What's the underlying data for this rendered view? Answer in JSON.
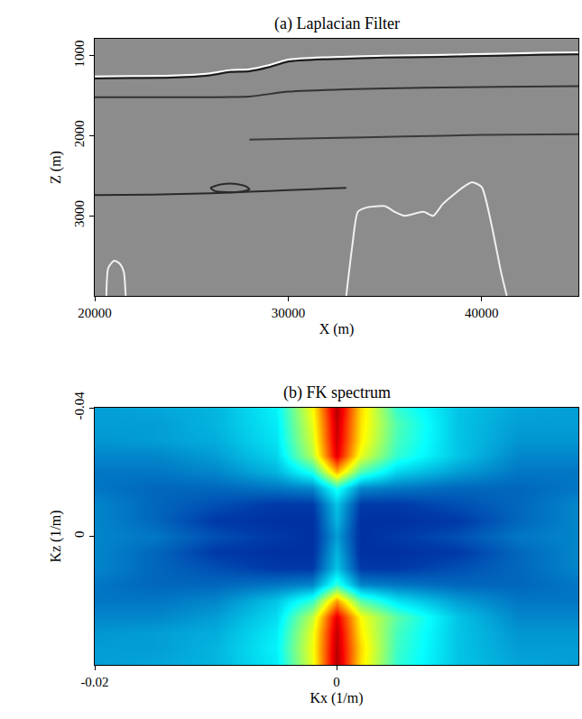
{
  "chart_data": [
    {
      "type": "line",
      "title": "(a) Laplacian Filter",
      "x_label": "X (m)",
      "y_label": "Z (m)",
      "xlim": [
        20000,
        45000
      ],
      "xticks": [
        20000,
        30000,
        40000
      ],
      "ylim": [
        4000,
        790
      ],
      "yticks": [
        1000,
        2000,
        3000
      ],
      "grid": false,
      "series": [
        {
          "color": "#ffffff",
          "x": [
            20000,
            22000,
            24000,
            26000,
            27000,
            28000,
            29000,
            30000,
            32000,
            35000,
            38000,
            41000,
            43000,
            45000
          ],
          "values": [
            1260,
            1255,
            1250,
            1220,
            1180,
            1170,
            1120,
            1050,
            1020,
            1000,
            990,
            975,
            965,
            960
          ]
        },
        {
          "color": "#1a1a1a",
          "x": [
            20000,
            22000,
            24000,
            26000,
            27000,
            28000,
            29000,
            30000,
            32000,
            35000,
            38000,
            41000,
            43000,
            45000
          ],
          "values": [
            1285,
            1280,
            1275,
            1245,
            1205,
            1195,
            1145,
            1075,
            1045,
            1025,
            1015,
            1000,
            990,
            985
          ]
        },
        {
          "color": "#333333",
          "x": [
            20000,
            25000,
            28000,
            30000,
            33000,
            37000,
            41000,
            45000
          ],
          "values": [
            1520,
            1520,
            1510,
            1450,
            1420,
            1400,
            1390,
            1380
          ]
        },
        {
          "color": "#3a3a3a",
          "x": [
            28000,
            32000,
            36000,
            40000,
            45000
          ],
          "values": [
            2050,
            2030,
            2010,
            1990,
            1980
          ]
        },
        {
          "color": "#2a2a2a",
          "x": [
            20000,
            23000,
            26000,
            28000,
            30000,
            32000,
            33000
          ],
          "values": [
            2740,
            2735,
            2720,
            2700,
            2680,
            2660,
            2650
          ]
        },
        {
          "color": "#2a2a2a",
          "x": [
            26000,
            26500,
            27200,
            27800,
            28000,
            27500,
            26800,
            26200,
            26000
          ],
          "values": [
            2650,
            2610,
            2600,
            2630,
            2670,
            2700,
            2705,
            2690,
            2650
          ]
        },
        {
          "color": "#f0f0f0",
          "x": [
            33000,
            33300,
            33600,
            34000,
            35000,
            35500,
            36000,
            37000,
            37500,
            38000,
            39000,
            39500,
            40000,
            40500,
            41000,
            41300
          ],
          "values": [
            4000,
            3400,
            2950,
            2900,
            2880,
            2950,
            3000,
            2950,
            3000,
            2850,
            2650,
            2580,
            2640,
            3100,
            3700,
            4000
          ]
        },
        {
          "color": "#f0f0f0",
          "x": [
            20600,
            20700,
            21000,
            21300,
            21500,
            21600
          ],
          "values": [
            4000,
            3650,
            3560,
            3600,
            3700,
            4000
          ]
        }
      ]
    },
    {
      "type": "heatmap",
      "title": "(b) FK spectrum",
      "x_label": "Kx (1/m)",
      "y_label": "Kz (1/m)",
      "xlim": [
        -0.02,
        0.02
      ],
      "xticks": [
        -0.02,
        0
      ],
      "ylim": [
        0.04,
        -0.04
      ],
      "yticks": [
        -0.04,
        0
      ],
      "zlim": [
        0,
        1
      ],
      "grid": false,
      "x": [
        -0.02,
        -0.015,
        -0.01,
        -0.005,
        -0.002,
        0,
        0.002,
        0.005,
        0.01,
        0.015,
        0.02
      ],
      "y": [
        -0.04,
        -0.035,
        -0.03,
        -0.025,
        -0.02,
        -0.015,
        -0.01,
        -0.005,
        0,
        0.005,
        0.01,
        0.015,
        0.02,
        0.025,
        0.03,
        0.035,
        0.04
      ],
      "z": [
        [
          0.25,
          0.26,
          0.28,
          0.36,
          0.62,
          0.95,
          0.66,
          0.42,
          0.3,
          0.26,
          0.25
        ],
        [
          0.25,
          0.25,
          0.28,
          0.35,
          0.6,
          0.93,
          0.65,
          0.45,
          0.3,
          0.25,
          0.25
        ],
        [
          0.24,
          0.25,
          0.27,
          0.34,
          0.58,
          0.92,
          0.64,
          0.44,
          0.3,
          0.24,
          0.24
        ],
        [
          0.22,
          0.22,
          0.25,
          0.32,
          0.55,
          0.9,
          0.6,
          0.42,
          0.3,
          0.22,
          0.22
        ],
        [
          0.2,
          0.2,
          0.22,
          0.28,
          0.4,
          0.7,
          0.45,
          0.32,
          0.25,
          0.2,
          0.2
        ],
        [
          0.2,
          0.18,
          0.18,
          0.2,
          0.22,
          0.4,
          0.22,
          0.2,
          0.18,
          0.18,
          0.2
        ],
        [
          0.22,
          0.18,
          0.15,
          0.12,
          0.12,
          0.3,
          0.12,
          0.12,
          0.15,
          0.18,
          0.22
        ],
        [
          0.22,
          0.18,
          0.12,
          0.1,
          0.1,
          0.28,
          0.1,
          0.1,
          0.12,
          0.18,
          0.22
        ],
        [
          0.22,
          0.2,
          0.15,
          0.12,
          0.1,
          0.25,
          0.1,
          0.12,
          0.15,
          0.2,
          0.22
        ],
        [
          0.22,
          0.18,
          0.12,
          0.1,
          0.1,
          0.28,
          0.1,
          0.1,
          0.12,
          0.18,
          0.22
        ],
        [
          0.22,
          0.18,
          0.15,
          0.12,
          0.12,
          0.3,
          0.12,
          0.12,
          0.15,
          0.18,
          0.22
        ],
        [
          0.2,
          0.18,
          0.18,
          0.2,
          0.22,
          0.42,
          0.22,
          0.2,
          0.18,
          0.18,
          0.2
        ],
        [
          0.2,
          0.2,
          0.22,
          0.3,
          0.42,
          0.72,
          0.46,
          0.34,
          0.25,
          0.2,
          0.2
        ],
        [
          0.22,
          0.22,
          0.25,
          0.33,
          0.56,
          0.9,
          0.62,
          0.46,
          0.3,
          0.22,
          0.22
        ],
        [
          0.24,
          0.25,
          0.27,
          0.35,
          0.6,
          0.93,
          0.64,
          0.44,
          0.3,
          0.24,
          0.24
        ],
        [
          0.25,
          0.25,
          0.28,
          0.36,
          0.61,
          0.94,
          0.66,
          0.43,
          0.3,
          0.25,
          0.25
        ],
        [
          0.25,
          0.26,
          0.28,
          0.35,
          0.6,
          0.95,
          0.65,
          0.42,
          0.3,
          0.26,
          0.25
        ]
      ]
    }
  ]
}
